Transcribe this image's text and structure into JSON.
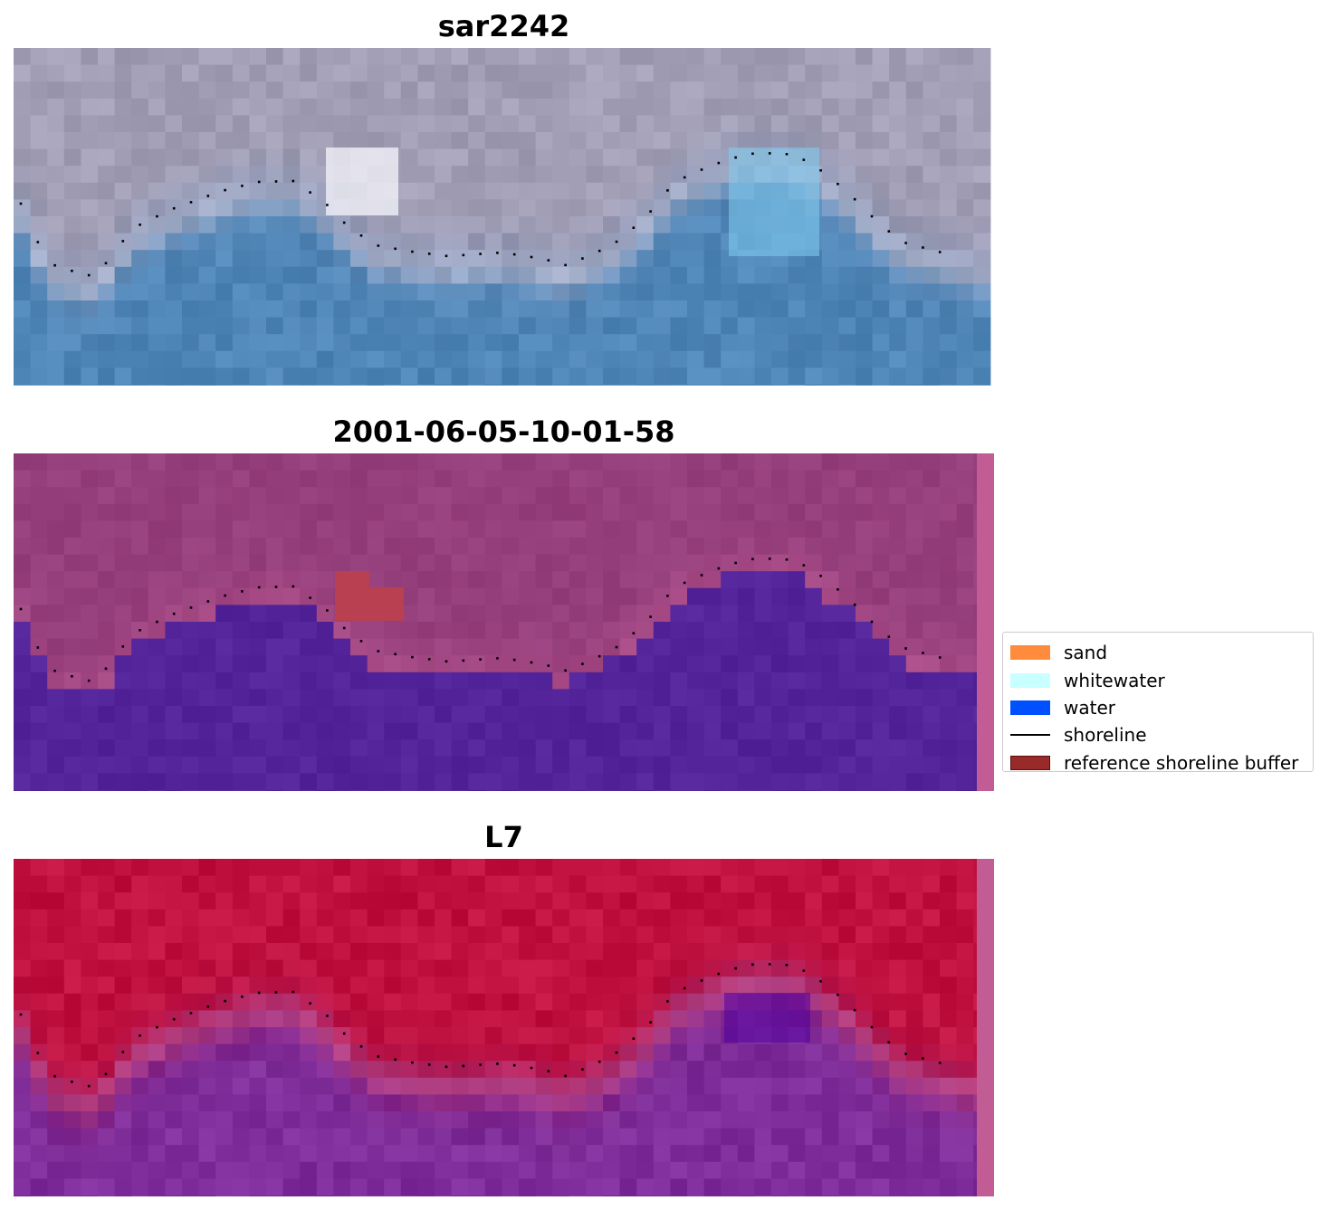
{
  "panels": [
    {
      "title": "sar2242",
      "kind": "rgb"
    },
    {
      "title": "2001-06-05-10-01-58",
      "kind": "classified"
    },
    {
      "title": "L7",
      "kind": "index"
    }
  ],
  "legend": {
    "items": [
      {
        "label": "sand",
        "color": "#ff8c3c",
        "type": "patch"
      },
      {
        "label": "whitewater",
        "color": "#c8ffff",
        "type": "patch"
      },
      {
        "label": "water",
        "color": "#0050ff",
        "type": "patch"
      },
      {
        "label": "shoreline",
        "color": "#000000",
        "type": "line"
      },
      {
        "label": "reference shoreline buffer",
        "color": "#982a2a",
        "type": "patch"
      }
    ]
  },
  "colors": {
    "rgb_land": "#a29eb6",
    "rgb_water": "#4f86b8",
    "classified_land": "#953f7c",
    "classified_water": "#53249a",
    "buffer_strip": "#c25c94",
    "index_land": "#c1123f",
    "index_water": "#7e2d9a",
    "shoreline": "#000000"
  }
}
